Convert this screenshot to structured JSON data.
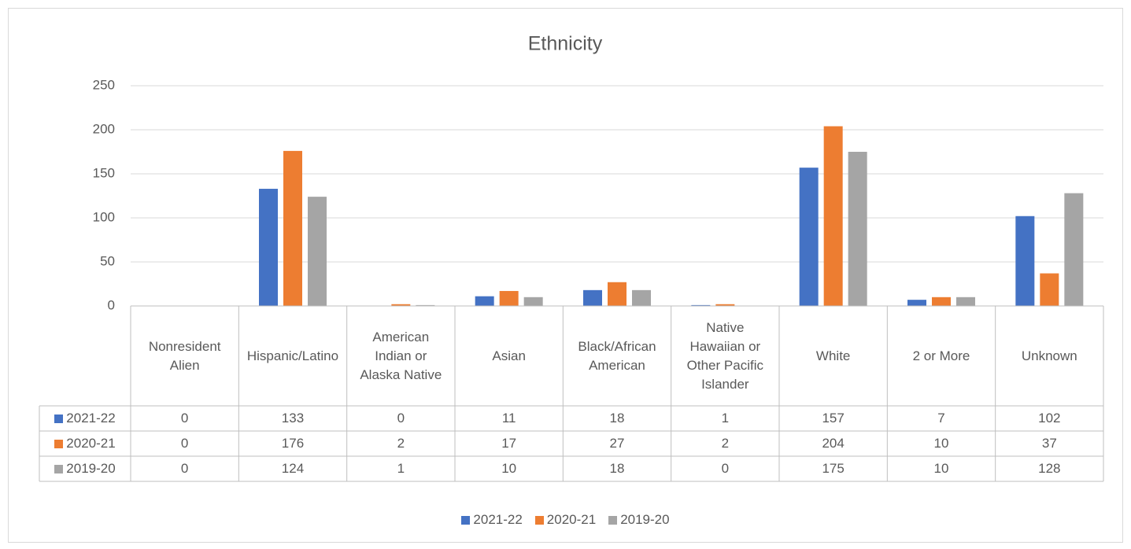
{
  "chart_data": {
    "type": "bar",
    "title": "Ethnicity",
    "categories": [
      "Nonresident Alien",
      "Hispanic/Latino",
      "American Indian or Alaska Native",
      "Asian",
      "Black/African American",
      "Native Hawaiian or Other Pacific Islander",
      "White",
      "2 or More",
      "Unknown"
    ],
    "series": [
      {
        "name": "2021-22",
        "color": "#4472c4",
        "values": [
          0,
          133,
          0,
          11,
          18,
          1,
          157,
          7,
          102
        ]
      },
      {
        "name": "2020-21",
        "color": "#ed7d31",
        "values": [
          0,
          176,
          2,
          17,
          27,
          2,
          204,
          10,
          37
        ]
      },
      {
        "name": "2019-20",
        "color": "#a5a5a5",
        "values": [
          0,
          124,
          1,
          10,
          18,
          0,
          175,
          10,
          128
        ]
      }
    ],
    "ylim": [
      0,
      250
    ],
    "yticks": [
      0,
      50,
      100,
      150,
      200,
      250
    ],
    "grid": true,
    "legend": "bottom"
  }
}
